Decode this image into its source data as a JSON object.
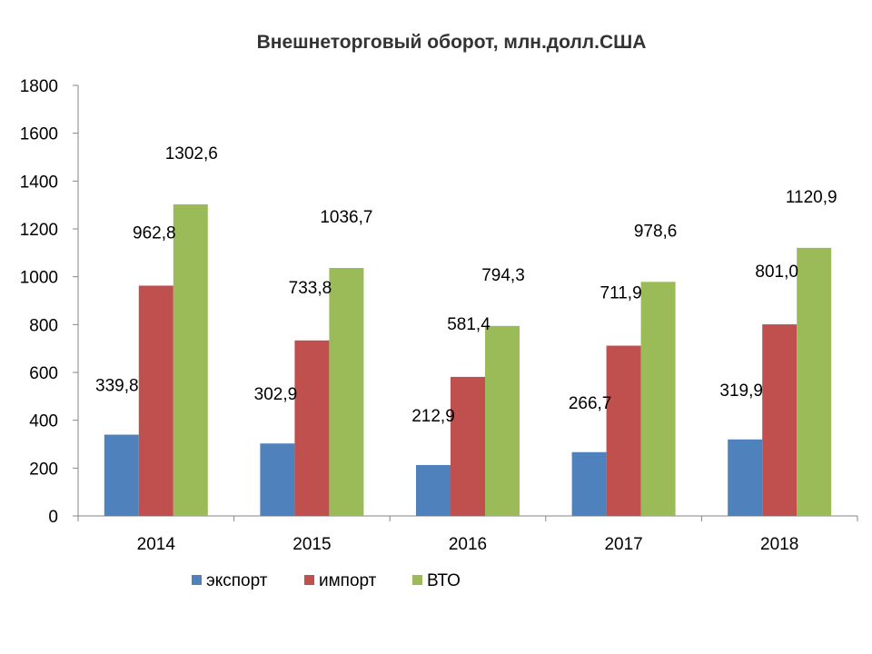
{
  "chart_data": {
    "type": "bar",
    "title": "Внешнеторговый оборот, млн.долл.США",
    "xlabel": "",
    "ylabel": "",
    "categories": [
      "2014",
      "2015",
      "2016",
      "2017",
      "2018"
    ],
    "series": [
      {
        "name": "экспорт",
        "color": "#4F81BD",
        "values": [
          339.8,
          302.9,
          212.9,
          266.7,
          319.9
        ],
        "labels": [
          "339,8",
          "302,9",
          "212,9",
          "266,7",
          "319,9"
        ]
      },
      {
        "name": "импорт",
        "color": "#C0504D",
        "values": [
          962.8,
          733.8,
          581.4,
          711.9,
          801.0
        ],
        "labels": [
          "962,8",
          "733,8",
          "581,4",
          "711,9",
          "801,0"
        ]
      },
      {
        "name": "ВТО",
        "color": "#9BBB59",
        "values": [
          1302.6,
          1036.7,
          794.3,
          978.6,
          1120.9
        ],
        "labels": [
          "1302,6",
          "1036,7",
          "794,3",
          "978,6",
          "1120,9"
        ]
      }
    ],
    "ylim": [
      0,
      1800
    ],
    "yticks": [
      0,
      200,
      400,
      600,
      800,
      1000,
      1200,
      1400,
      1600,
      1800
    ],
    "grid": false,
    "legend_position": "bottom"
  }
}
